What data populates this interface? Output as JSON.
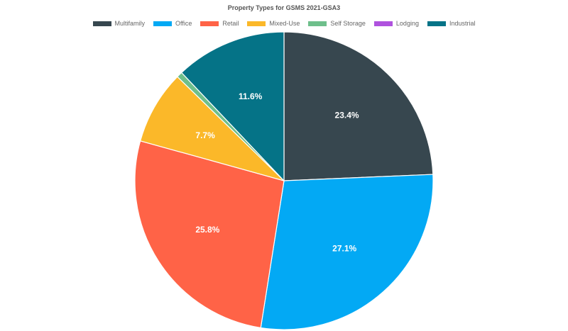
{
  "chart_data": {
    "type": "pie",
    "title": "Property Types for GSMS 2021-GSA3",
    "legend_position": "top",
    "slices": [
      {
        "name": "Multifamily",
        "value": 23.4,
        "label": "23.4%",
        "color": "#37474f"
      },
      {
        "name": "Office",
        "value": 27.1,
        "label": "27.1%",
        "color": "#03a9f4"
      },
      {
        "name": "Retail",
        "value": 25.8,
        "label": "25.8%",
        "color": "#ff6347"
      },
      {
        "name": "Mixed-Use",
        "value": 7.7,
        "label": "7.7%",
        "color": "#fbb829"
      },
      {
        "name": "Self Storage",
        "value": 0.6,
        "label": "",
        "color": "#6ebf8b"
      },
      {
        "name": "Lodging",
        "value": 0.0,
        "label": "",
        "color": "#af52de"
      },
      {
        "name": "Industrial",
        "value": 11.6,
        "label": "11.6%",
        "color": "#057387"
      }
    ]
  }
}
